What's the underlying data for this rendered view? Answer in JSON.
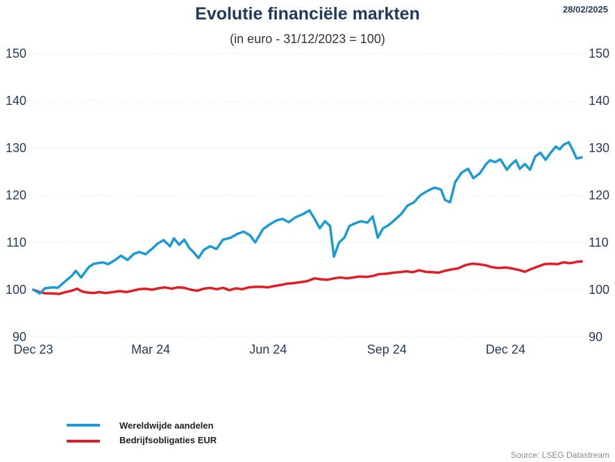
{
  "header": {
    "date": "28/02/2025"
  },
  "source": "Source: LSEG Datastream",
  "colors": {
    "title": "#1f3a5f",
    "series_equity": "#1a9bd7",
    "series_bonds": "#e31b23"
  },
  "chart_data": {
    "type": "line",
    "title": "Evolutie financiële markten",
    "subtitle": "(in euro - 31/12/2023 = 100)",
    "xlabel": "",
    "ylabel": "",
    "ylim": [
      90,
      150
    ],
    "yticks": [
      "90",
      "100",
      "110",
      "120",
      "130",
      "140",
      "150"
    ],
    "secondary_yticks": [
      "90",
      "100",
      "110",
      "120",
      "130",
      "140",
      "150"
    ],
    "xlim": [
      "2023-12-31",
      "2025-02-28"
    ],
    "xticks": [
      {
        "date": "2023-12-31",
        "label": "Dec 23"
      },
      {
        "date": "2024-03-31",
        "label": "Mar 24"
      },
      {
        "date": "2024-06-30",
        "label": "Jun 24"
      },
      {
        "date": "2024-09-30",
        "label": "Sep 24"
      },
      {
        "date": "2024-12-31",
        "label": "Dec 24"
      }
    ],
    "grid": true,
    "legend_position": "bottom-left",
    "series": [
      {
        "name": "Wereldwijde aandelen",
        "color": "#1a9bd7",
        "points": [
          [
            "2023-12-31",
            100.0
          ],
          [
            "2024-01-05",
            99.2
          ],
          [
            "2024-01-09",
            100.3
          ],
          [
            "2024-01-15",
            100.5
          ],
          [
            "2024-01-19",
            100.4
          ],
          [
            "2024-01-24",
            101.6
          ],
          [
            "2024-01-30",
            103.0
          ],
          [
            "2024-02-02",
            104.0
          ],
          [
            "2024-02-06",
            102.6
          ],
          [
            "2024-02-12",
            104.8
          ],
          [
            "2024-02-16",
            105.5
          ],
          [
            "2024-02-23",
            105.8
          ],
          [
            "2024-02-27",
            105.4
          ],
          [
            "2024-03-04",
            106.4
          ],
          [
            "2024-03-08",
            107.2
          ],
          [
            "2024-03-13",
            106.3
          ],
          [
            "2024-03-18",
            107.6
          ],
          [
            "2024-03-22",
            108.0
          ],
          [
            "2024-03-27",
            107.5
          ],
          [
            "2024-04-02",
            108.9
          ],
          [
            "2024-04-05",
            109.7
          ],
          [
            "2024-04-10",
            110.5
          ],
          [
            "2024-04-15",
            109.2
          ],
          [
            "2024-04-18",
            110.9
          ],
          [
            "2024-04-22",
            109.5
          ],
          [
            "2024-04-26",
            110.6
          ],
          [
            "2024-04-30",
            108.8
          ],
          [
            "2024-05-03",
            108.0
          ],
          [
            "2024-05-07",
            106.7
          ],
          [
            "2024-05-11",
            108.4
          ],
          [
            "2024-05-16",
            109.2
          ],
          [
            "2024-05-21",
            108.6
          ],
          [
            "2024-05-26",
            110.6
          ],
          [
            "2024-06-01",
            111.0
          ],
          [
            "2024-06-06",
            111.8
          ],
          [
            "2024-06-11",
            112.3
          ],
          [
            "2024-06-16",
            111.5
          ],
          [
            "2024-06-20",
            110.0
          ],
          [
            "2024-06-26",
            112.8
          ],
          [
            "2024-07-01",
            113.8
          ],
          [
            "2024-07-06",
            114.6
          ],
          [
            "2024-07-11",
            115.0
          ],
          [
            "2024-07-16",
            114.3
          ],
          [
            "2024-07-21",
            115.3
          ],
          [
            "2024-07-27",
            116.0
          ],
          [
            "2024-08-01",
            116.8
          ],
          [
            "2024-08-05",
            115.0
          ],
          [
            "2024-08-09",
            113.0
          ],
          [
            "2024-08-13",
            114.5
          ],
          [
            "2024-08-17",
            113.5
          ],
          [
            "2024-08-20",
            107.0
          ],
          [
            "2024-08-24",
            110.0
          ],
          [
            "2024-08-28",
            111.0
          ],
          [
            "2024-09-01",
            113.5
          ],
          [
            "2024-09-05",
            114.0
          ],
          [
            "2024-09-10",
            114.5
          ],
          [
            "2024-09-15",
            114.2
          ],
          [
            "2024-09-19",
            115.5
          ],
          [
            "2024-09-23",
            111.0
          ],
          [
            "2024-09-27",
            113.0
          ],
          [
            "2024-10-01",
            113.6
          ],
          [
            "2024-10-05",
            114.5
          ],
          [
            "2024-10-11",
            116.0
          ],
          [
            "2024-10-16",
            117.8
          ],
          [
            "2024-10-21",
            118.5
          ],
          [
            "2024-10-26",
            120.0
          ],
          [
            "2024-11-01",
            121.0
          ],
          [
            "2024-11-06",
            121.6
          ],
          [
            "2024-11-11",
            121.2
          ],
          [
            "2024-11-14",
            119.0
          ],
          [
            "2024-11-18",
            118.5
          ],
          [
            "2024-11-22",
            122.8
          ],
          [
            "2024-11-27",
            124.8
          ],
          [
            "2024-12-02",
            125.6
          ],
          [
            "2024-12-06",
            123.6
          ],
          [
            "2024-12-11",
            124.6
          ],
          [
            "2024-12-16",
            126.6
          ],
          [
            "2024-12-19",
            127.4
          ],
          [
            "2024-12-23",
            127.0
          ],
          [
            "2024-12-27",
            127.6
          ],
          [
            "2025-01-01",
            125.4
          ],
          [
            "2025-01-04",
            126.4
          ],
          [
            "2025-01-08",
            127.4
          ],
          [
            "2025-01-11",
            125.6
          ],
          [
            "2025-01-15",
            126.6
          ],
          [
            "2025-01-19",
            125.4
          ],
          [
            "2025-01-23",
            128.2
          ],
          [
            "2025-01-27",
            129.0
          ],
          [
            "2025-01-31",
            127.5
          ],
          [
            "2025-02-04",
            129.0
          ],
          [
            "2025-02-08",
            130.3
          ],
          [
            "2025-02-11",
            129.7
          ],
          [
            "2025-02-14",
            130.7
          ],
          [
            "2025-02-18",
            131.2
          ],
          [
            "2025-02-21",
            129.6
          ],
          [
            "2025-02-24",
            127.8
          ],
          [
            "2025-02-28",
            128.0
          ]
        ]
      },
      {
        "name": "Bedrijfsobligaties EUR",
        "color": "#e31b23",
        "points": [
          [
            "2023-12-31",
            100.0
          ],
          [
            "2024-01-05",
            99.5
          ],
          [
            "2024-01-10",
            99.2
          ],
          [
            "2024-01-15",
            99.2
          ],
          [
            "2024-01-20",
            99.1
          ],
          [
            "2024-01-25",
            99.5
          ],
          [
            "2024-01-30",
            99.8
          ],
          [
            "2024-02-03",
            100.2
          ],
          [
            "2024-02-07",
            99.6
          ],
          [
            "2024-02-11",
            99.4
          ],
          [
            "2024-02-16",
            99.3
          ],
          [
            "2024-02-20",
            99.5
          ],
          [
            "2024-02-25",
            99.3
          ],
          [
            "2024-03-02",
            99.5
          ],
          [
            "2024-03-07",
            99.7
          ],
          [
            "2024-03-12",
            99.5
          ],
          [
            "2024-03-17",
            99.8
          ],
          [
            "2024-03-22",
            100.1
          ],
          [
            "2024-03-27",
            100.2
          ],
          [
            "2024-04-01",
            100.0
          ],
          [
            "2024-04-06",
            100.3
          ],
          [
            "2024-04-11",
            100.5
          ],
          [
            "2024-04-16",
            100.2
          ],
          [
            "2024-04-21",
            100.5
          ],
          [
            "2024-04-26",
            100.4
          ],
          [
            "2024-05-01",
            100.0
          ],
          [
            "2024-05-06",
            99.8
          ],
          [
            "2024-05-11",
            100.2
          ],
          [
            "2024-05-16",
            100.4
          ],
          [
            "2024-05-21",
            100.1
          ],
          [
            "2024-05-26",
            100.4
          ],
          [
            "2024-05-31",
            99.9
          ],
          [
            "2024-06-05",
            100.3
          ],
          [
            "2024-06-10",
            100.1
          ],
          [
            "2024-06-15",
            100.5
          ],
          [
            "2024-06-20",
            100.6
          ],
          [
            "2024-06-25",
            100.6
          ],
          [
            "2024-06-30",
            100.5
          ],
          [
            "2024-07-05",
            100.8
          ],
          [
            "2024-07-10",
            101.0
          ],
          [
            "2024-07-15",
            101.3
          ],
          [
            "2024-07-20",
            101.4
          ],
          [
            "2024-07-25",
            101.6
          ],
          [
            "2024-07-30",
            101.8
          ],
          [
            "2024-08-05",
            102.4
          ],
          [
            "2024-08-10",
            102.2
          ],
          [
            "2024-08-15",
            102.1
          ],
          [
            "2024-08-20",
            102.4
          ],
          [
            "2024-08-25",
            102.6
          ],
          [
            "2024-08-30",
            102.4
          ],
          [
            "2024-09-04",
            102.6
          ],
          [
            "2024-09-09",
            102.8
          ],
          [
            "2024-09-14",
            102.7
          ],
          [
            "2024-09-19",
            102.9
          ],
          [
            "2024-09-24",
            103.3
          ],
          [
            "2024-09-30",
            103.4
          ],
          [
            "2024-10-05",
            103.6
          ],
          [
            "2024-10-10",
            103.7
          ],
          [
            "2024-10-15",
            103.9
          ],
          [
            "2024-10-20",
            103.7
          ],
          [
            "2024-10-25",
            104.1
          ],
          [
            "2024-10-30",
            103.8
          ],
          [
            "2024-11-04",
            103.7
          ],
          [
            "2024-11-09",
            103.6
          ],
          [
            "2024-11-14",
            104.0
          ],
          [
            "2024-11-19",
            104.3
          ],
          [
            "2024-11-24",
            104.5
          ],
          [
            "2024-11-30",
            105.2
          ],
          [
            "2024-12-05",
            105.5
          ],
          [
            "2024-12-10",
            105.4
          ],
          [
            "2024-12-15",
            105.2
          ],
          [
            "2024-12-20",
            104.8
          ],
          [
            "2024-12-25",
            104.6
          ],
          [
            "2024-12-31",
            104.7
          ],
          [
            "2025-01-05",
            104.5
          ],
          [
            "2025-01-10",
            104.2
          ],
          [
            "2025-01-15",
            103.8
          ],
          [
            "2025-01-20",
            104.4
          ],
          [
            "2025-01-25",
            104.9
          ],
          [
            "2025-01-30",
            105.4
          ],
          [
            "2025-02-04",
            105.5
          ],
          [
            "2025-02-09",
            105.4
          ],
          [
            "2025-02-14",
            105.8
          ],
          [
            "2025-02-19",
            105.6
          ],
          [
            "2025-02-24",
            105.9
          ],
          [
            "2025-02-28",
            106.0
          ]
        ]
      }
    ]
  }
}
